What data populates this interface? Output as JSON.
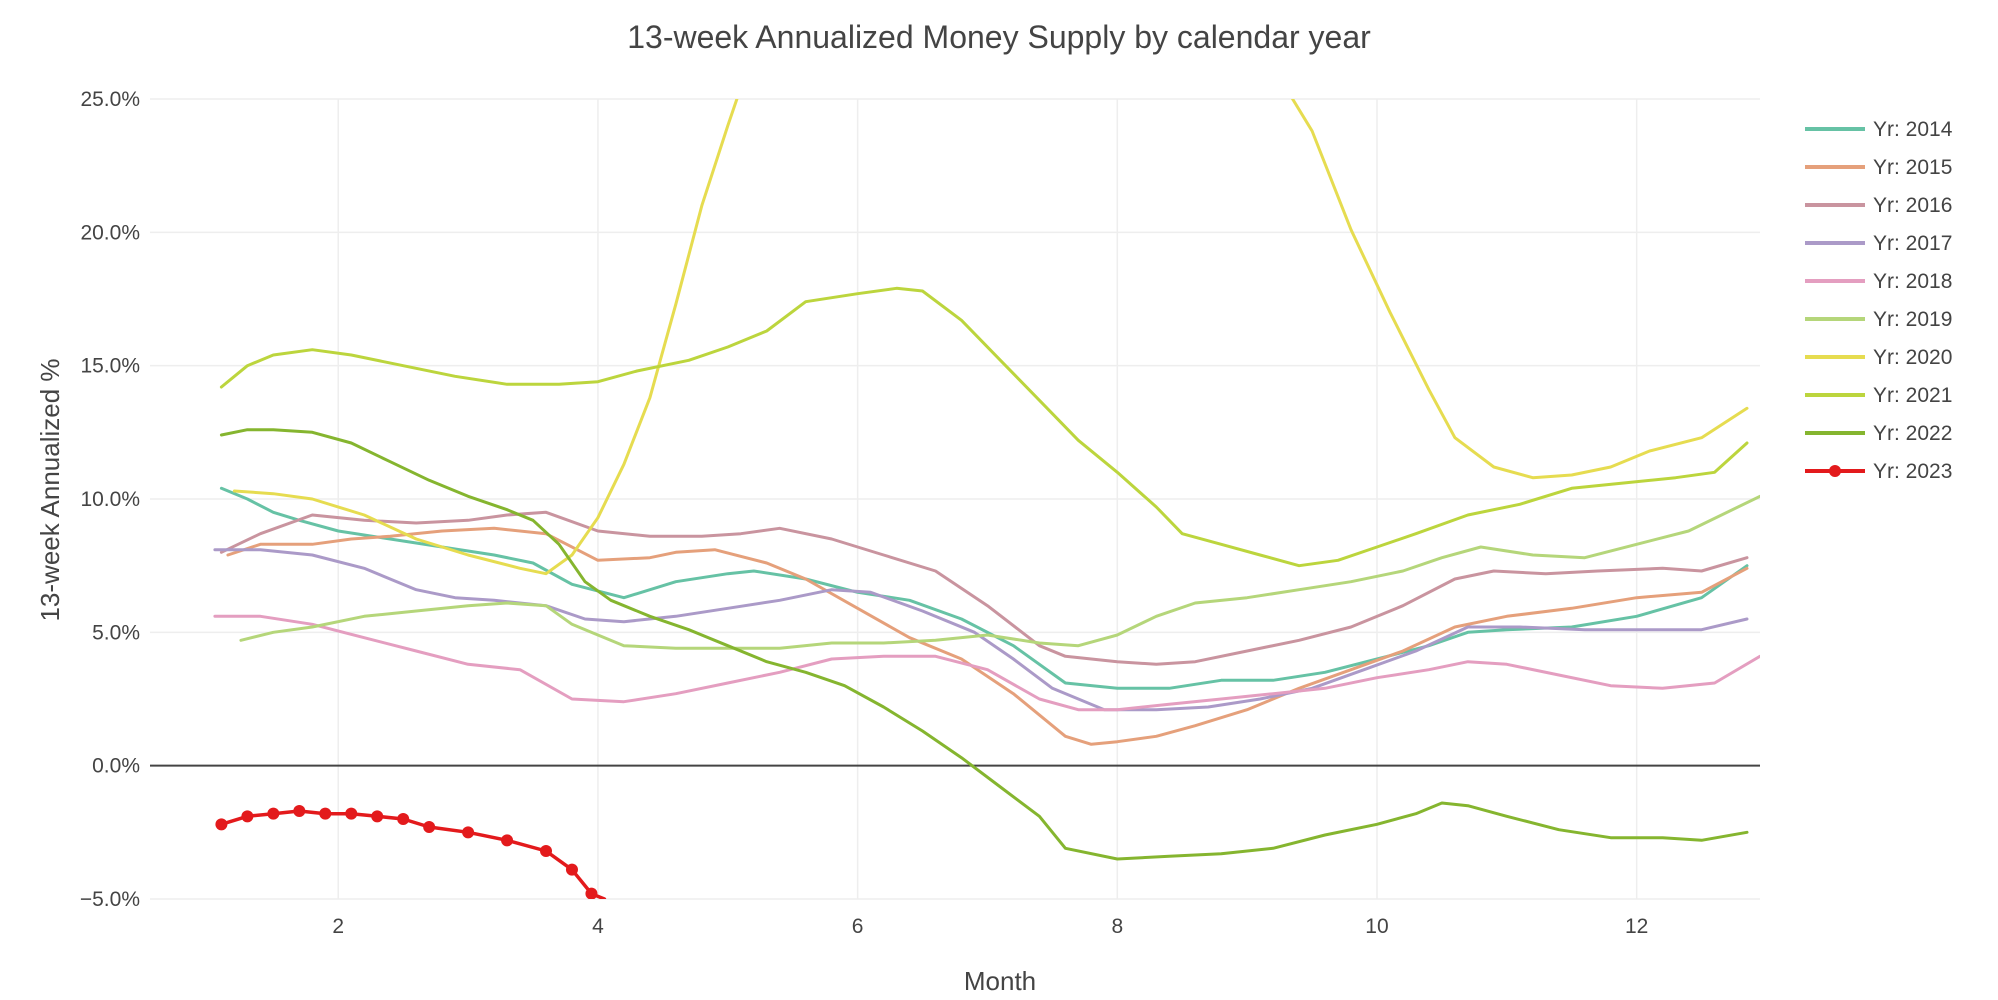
{
  "chart_data": {
    "type": "line",
    "title": "13-week Annualized Money Supply by calendar year",
    "xlabel": "Month",
    "ylabel": "13-week Annualized %",
    "xlim": [
      0.55,
      12.95
    ],
    "ylim": [
      -5,
      25
    ],
    "xticks": [
      2,
      4,
      6,
      8,
      10,
      12
    ],
    "yticks": [
      -5,
      0,
      5,
      10,
      15,
      20,
      25
    ],
    "ytick_labels": [
      "−5.0%",
      "0.0%",
      "5.0%",
      "10.0%",
      "15.0%",
      "20.0%",
      "25.0%"
    ],
    "grid": true,
    "legend_position": "top-right",
    "series": [
      {
        "name": "Yr: 2014",
        "color": "#66c2a5",
        "markers": false,
        "x": [
          1.1,
          1.3,
          1.5,
          1.7,
          2.0,
          2.4,
          2.8,
          3.2,
          3.5,
          3.8,
          4.2,
          4.6,
          5.0,
          5.2,
          5.6,
          6.0,
          6.4,
          6.8,
          7.2,
          7.6,
          8.0,
          8.4,
          8.8,
          9.2,
          9.6,
          10.0,
          10.4,
          10.7,
          11.0,
          11.5,
          12.0,
          12.5,
          12.85
        ],
        "y": [
          10.4,
          10.0,
          9.5,
          9.2,
          8.8,
          8.5,
          8.2,
          7.9,
          7.6,
          6.8,
          6.3,
          6.9,
          7.2,
          7.3,
          7.0,
          6.5,
          6.2,
          5.5,
          4.5,
          3.1,
          2.9,
          2.9,
          3.2,
          3.2,
          3.5,
          4.0,
          4.5,
          5.0,
          5.1,
          5.2,
          5.6,
          6.3,
          7.5
        ]
      },
      {
        "name": "Yr: 2015",
        "color": "#e5a07b",
        "markers": false,
        "x": [
          1.15,
          1.4,
          1.8,
          2.1,
          2.4,
          2.8,
          3.2,
          3.6,
          4.0,
          4.4,
          4.6,
          4.9,
          5.3,
          5.6,
          6.0,
          6.4,
          6.8,
          7.2,
          7.6,
          7.8,
          8.0,
          8.3,
          8.6,
          9.0,
          9.4,
          9.8,
          10.2,
          10.6,
          11.0,
          11.5,
          12.0,
          12.5,
          12.85
        ],
        "y": [
          7.9,
          8.3,
          8.3,
          8.5,
          8.6,
          8.8,
          8.9,
          8.7,
          7.7,
          7.8,
          8.0,
          8.1,
          7.6,
          7.0,
          5.9,
          4.8,
          4.0,
          2.7,
          1.1,
          0.8,
          0.9,
          1.1,
          1.5,
          2.1,
          2.9,
          3.6,
          4.3,
          5.2,
          5.6,
          5.9,
          6.3,
          6.5,
          7.4
        ]
      },
      {
        "name": "Yr: 2016",
        "color": "#c9949f",
        "markers": false,
        "x": [
          1.1,
          1.4,
          1.8,
          2.2,
          2.6,
          3.0,
          3.3,
          3.6,
          4.0,
          4.4,
          4.8,
          5.1,
          5.4,
          5.8,
          6.2,
          6.6,
          7.0,
          7.4,
          7.6,
          8.0,
          8.3,
          8.6,
          9.0,
          9.4,
          9.8,
          10.2,
          10.6,
          10.9,
          11.3,
          11.7,
          12.2,
          12.5,
          12.85
        ],
        "y": [
          8.0,
          8.7,
          9.4,
          9.2,
          9.1,
          9.2,
          9.4,
          9.5,
          8.8,
          8.6,
          8.6,
          8.7,
          8.9,
          8.5,
          7.9,
          7.3,
          6.0,
          4.5,
          4.1,
          3.9,
          3.8,
          3.9,
          4.3,
          4.7,
          5.2,
          6.0,
          7.0,
          7.3,
          7.2,
          7.3,
          7.4,
          7.3,
          7.8
        ]
      },
      {
        "name": "Yr: 2017",
        "color": "#ab9ac8",
        "markers": false,
        "x": [
          1.05,
          1.4,
          1.8,
          2.2,
          2.6,
          2.9,
          3.2,
          3.6,
          3.9,
          4.2,
          4.6,
          5.0,
          5.4,
          5.8,
          6.1,
          6.5,
          6.9,
          7.2,
          7.5,
          7.9,
          8.3,
          8.7,
          9.1,
          9.5,
          9.9,
          10.3,
          10.7,
          11.1,
          11.6,
          12.0,
          12.5,
          12.85
        ],
        "y": [
          8.1,
          8.1,
          7.9,
          7.4,
          6.6,
          6.3,
          6.2,
          6.0,
          5.5,
          5.4,
          5.6,
          5.9,
          6.2,
          6.6,
          6.5,
          5.8,
          5.0,
          4.0,
          2.9,
          2.1,
          2.1,
          2.2,
          2.5,
          2.9,
          3.6,
          4.3,
          5.2,
          5.2,
          5.1,
          5.1,
          5.1,
          5.5
        ]
      },
      {
        "name": "Yr: 2018",
        "color": "#e49ec0",
        "markers": false,
        "x": [
          1.05,
          1.4,
          1.8,
          2.2,
          2.6,
          3.0,
          3.4,
          3.8,
          4.2,
          4.6,
          5.0,
          5.4,
          5.8,
          6.2,
          6.6,
          7.0,
          7.4,
          7.7,
          8.0,
          8.4,
          8.8,
          9.2,
          9.6,
          10.0,
          10.4,
          10.7,
          11.0,
          11.4,
          11.8,
          12.2,
          12.6,
          12.95
        ],
        "y": [
          5.6,
          5.6,
          5.3,
          4.8,
          4.3,
          3.8,
          3.6,
          2.5,
          2.4,
          2.7,
          3.1,
          3.5,
          4.0,
          4.1,
          4.1,
          3.6,
          2.5,
          2.1,
          2.1,
          2.3,
          2.5,
          2.7,
          2.9,
          3.3,
          3.6,
          3.9,
          3.8,
          3.4,
          3.0,
          2.9,
          3.1,
          4.1
        ]
      },
      {
        "name": "Yr: 2019",
        "color": "#b5d67a",
        "markers": false,
        "x": [
          1.25,
          1.5,
          1.8,
          2.2,
          2.6,
          3.0,
          3.3,
          3.6,
          3.8,
          4.0,
          4.2,
          4.6,
          5.0,
          5.4,
          5.8,
          6.2,
          6.6,
          7.0,
          7.4,
          7.7,
          8.0,
          8.3,
          8.6,
          9.0,
          9.4,
          9.8,
          10.2,
          10.5,
          10.8,
          11.2,
          11.6,
          12.0,
          12.4,
          12.95
        ],
        "y": [
          4.7,
          5.0,
          5.2,
          5.6,
          5.8,
          6.0,
          6.1,
          6.0,
          5.3,
          4.9,
          4.5,
          4.4,
          4.4,
          4.4,
          4.6,
          4.6,
          4.7,
          4.9,
          4.6,
          4.5,
          4.9,
          5.6,
          6.1,
          6.3,
          6.6,
          6.9,
          7.3,
          7.8,
          8.2,
          7.9,
          7.8,
          8.3,
          8.8,
          10.1
        ]
      },
      {
        "name": "Yr: 2020",
        "color": "#e6dc50",
        "markers": false,
        "x": [
          1.2,
          1.5,
          1.8,
          2.2,
          2.6,
          3.0,
          3.4,
          3.6,
          3.8,
          4.0,
          4.2,
          4.4,
          4.6,
          4.8,
          5.0,
          5.07,
          null,
          9.35,
          9.5,
          9.8,
          10.1,
          10.4,
          10.6,
          10.9,
          11.2,
          11.5,
          11.8,
          12.1,
          12.5,
          12.85
        ],
        "y": [
          10.3,
          10.2,
          10.0,
          9.4,
          8.5,
          7.9,
          7.4,
          7.2,
          7.9,
          9.3,
          11.3,
          13.8,
          17.3,
          21.0,
          24.0,
          25.0,
          null,
          25.0,
          23.8,
          20.1,
          17.0,
          14.1,
          12.3,
          11.2,
          10.8,
          10.9,
          11.2,
          11.8,
          12.3,
          13.4
        ]
      },
      {
        "name": "Yr: 2021",
        "color": "#bcd53d",
        "markers": false,
        "x": [
          1.1,
          1.3,
          1.5,
          1.8,
          2.1,
          2.5,
          2.9,
          3.3,
          3.7,
          4.0,
          4.3,
          4.7,
          5.0,
          5.3,
          5.6,
          6.0,
          6.3,
          6.5,
          6.8,
          7.1,
          7.4,
          7.7,
          8.0,
          8.3,
          8.5,
          8.8,
          9.1,
          9.4,
          9.7,
          10.0,
          10.3,
          10.7,
          11.1,
          11.5,
          11.9,
          12.3,
          12.6,
          12.85
        ],
        "y": [
          14.2,
          15.0,
          15.4,
          15.6,
          15.4,
          15.0,
          14.6,
          14.3,
          14.3,
          14.4,
          14.8,
          15.2,
          15.7,
          16.3,
          17.4,
          17.7,
          17.9,
          17.8,
          16.7,
          15.2,
          13.7,
          12.2,
          11.0,
          9.7,
          8.7,
          8.3,
          7.9,
          7.5,
          7.7,
          8.2,
          8.7,
          9.4,
          9.8,
          10.4,
          10.6,
          10.8,
          11.0,
          12.1
        ]
      },
      {
        "name": "Yr: 2022",
        "color": "#85b52f",
        "markers": false,
        "x": [
          1.1,
          1.3,
          1.5,
          1.8,
          2.1,
          2.4,
          2.7,
          3.0,
          3.3,
          3.5,
          3.7,
          3.9,
          4.1,
          4.4,
          4.7,
          5.0,
          5.3,
          5.6,
          5.9,
          6.2,
          6.5,
          6.8,
          7.1,
          7.4,
          7.6,
          8.0,
          8.4,
          8.8,
          9.2,
          9.6,
          10.0,
          10.3,
          10.5,
          10.7,
          11.0,
          11.4,
          11.8,
          12.2,
          12.5,
          12.85
        ],
        "y": [
          12.4,
          12.6,
          12.6,
          12.5,
          12.1,
          11.4,
          10.7,
          10.1,
          9.6,
          9.2,
          8.3,
          6.9,
          6.2,
          5.6,
          5.1,
          4.5,
          3.9,
          3.5,
          3.0,
          2.2,
          1.3,
          0.3,
          -0.8,
          -1.9,
          -3.1,
          -3.5,
          -3.4,
          -3.3,
          -3.1,
          -2.6,
          -2.2,
          -1.8,
          -1.4,
          -1.5,
          -1.9,
          -2.4,
          -2.7,
          -2.7,
          -2.8,
          -2.5
        ]
      },
      {
        "name": "Yr: 2023",
        "color": "#e31a1c",
        "markers": true,
        "x": [
          1.1,
          1.3,
          1.5,
          1.7,
          1.9,
          2.1,
          2.3,
          2.5,
          2.7,
          3.0,
          3.3,
          3.6,
          3.8,
          3.95,
          4.05
        ],
        "y": [
          -2.2,
          -1.9,
          -1.8,
          -1.7,
          -1.8,
          -1.8,
          -1.9,
          -2.0,
          -2.3,
          -2.5,
          -2.8,
          -3.2,
          -3.9,
          -4.8,
          -5.0
        ],
        "marker_hidden": [
          false,
          false,
          false,
          false,
          false,
          false,
          false,
          false,
          false,
          false,
          false,
          false,
          false,
          false,
          true
        ]
      }
    ]
  }
}
